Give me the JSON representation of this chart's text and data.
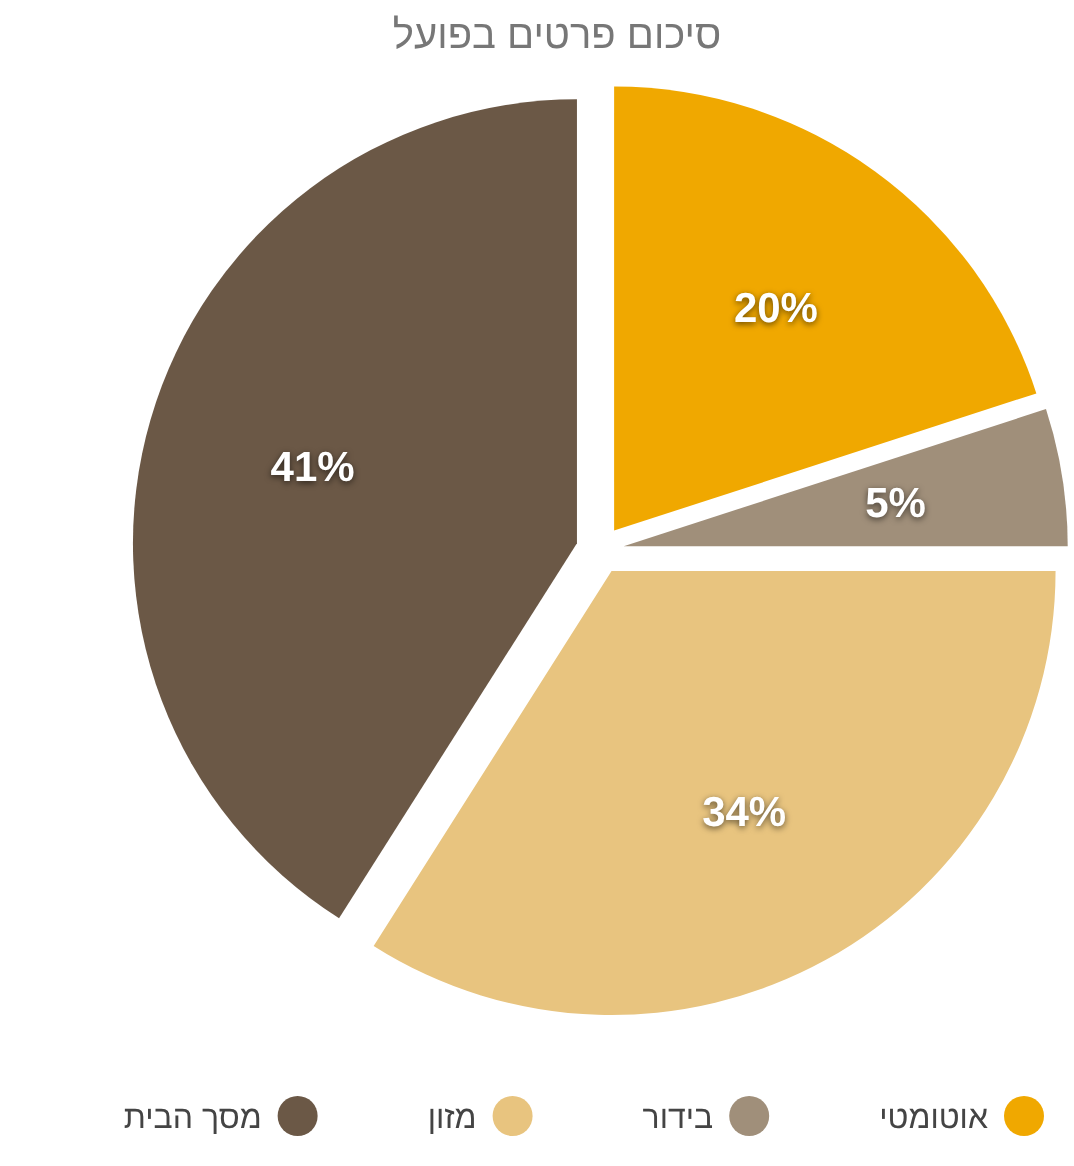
{
  "chart_data": {
    "type": "pie",
    "title": "סיכום פרטים בפועל",
    "categories": [
      "אוטומטי",
      "בידור",
      "מזון",
      "מסך הבית"
    ],
    "values": [
      20,
      5,
      34,
      41
    ],
    "colors": [
      "#f0a800",
      "#a08f7a",
      "#e8c47f",
      "#6b5846"
    ],
    "value_labels": [
      "20%",
      "5%",
      "34%",
      "41%"
    ],
    "legend": "bottom"
  }
}
